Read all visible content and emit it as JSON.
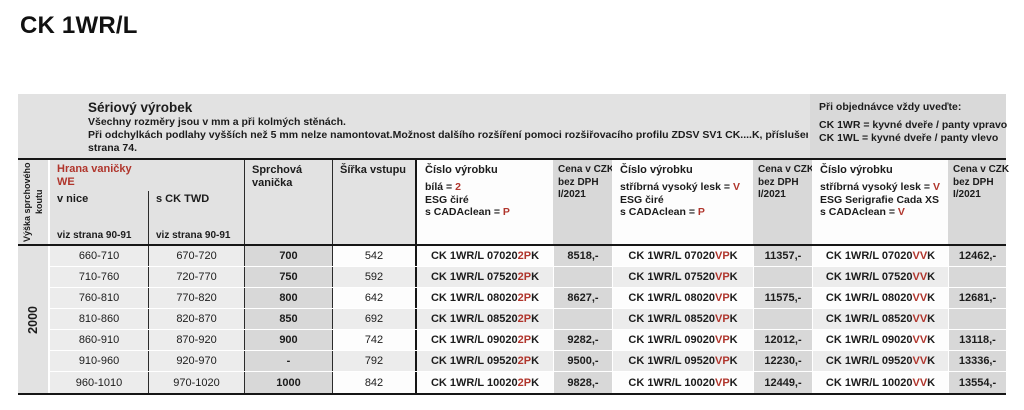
{
  "page_title": "CK 1WR/L",
  "info_band": {
    "heading": "Sériový výrobek",
    "lines": [
      "Všechny rozměry jsou v mm a při kolmých stěnách.",
      "Při odchylkách podlahy vyšších než 5 mm nelze namontovat.Možnost dalšího rozšíření pomoci rozšiřovacího profilu ZDSV SV1 CK....K, příslušenství",
      "strana 74."
    ],
    "order_note": {
      "heading": "Při objednávce vždy uveďte:",
      "lines": [
        "CK 1WR = kyvné dveře / panty vpravo",
        "CK 1WL = kyvné dveře / panty vlevo"
      ]
    }
  },
  "table": {
    "colors": {
      "accent_red": "#b0352c",
      "line_black": "#161616"
    },
    "headers": {
      "height_label": "Výška sprchového koutu",
      "edge_title": "Hrana vaničky",
      "edge_subtitle": "WE",
      "edge_niche": "v nice",
      "edge_twd": "s CK TWD",
      "edge_ref_a": "viz strana 90-91",
      "edge_ref_b": "viz strana 90-91",
      "tray": "Sprchová vanička",
      "entry_width": "Šířka vstupu",
      "product_title1": "Číslo výrobku",
      "product_title2": "Číslo výrobku",
      "product_title3": "Číslo výrobku",
      "price_lines": [
        "Cena v CZK",
        "bez DPH",
        "I/2021"
      ],
      "product1_specs": [
        {
          "text": "bílá = ",
          "code": "2"
        },
        {
          "text": "ESG čiré",
          "code": ""
        },
        {
          "text": "s CADAclean = ",
          "code": "P"
        }
      ],
      "product2_specs": [
        {
          "text": "stříbrná vysoký lesk = ",
          "code": "V"
        },
        {
          "text": "ESG čiré",
          "code": ""
        },
        {
          "text": "s CADAclean = ",
          "code": "P"
        }
      ],
      "product3_specs": [
        {
          "text": "stříbrná vysoký lesk = ",
          "code": "V"
        },
        {
          "text": "ESG Serigrafie Cada XS",
          "code": ""
        },
        {
          "text": "s CADAclean = ",
          "code": "V"
        }
      ]
    },
    "height_value": "2000",
    "rows": [
      {
        "niche": "660-710",
        "twd": "670-720",
        "tray": "700",
        "width": "542",
        "p1": {
          "base": "CK 1WR/L 07020 ",
          "red": "2P",
          "tail": "K"
        },
        "price1": "8518,-",
        "p2": {
          "base": "CK 1WR/L 07020 ",
          "red": "VP",
          "tail": "K"
        },
        "price2": "11357,-",
        "p3": {
          "base": "CK 1WR/L 07020 ",
          "red": "VV",
          "tail": "K"
        },
        "price3": "12462,-"
      },
      {
        "niche": "710-760",
        "twd": "720-770",
        "tray": "750",
        "width": "592",
        "p1": {
          "base": "CK 1WR/L 07520 ",
          "red": "2P",
          "tail": "K"
        },
        "price1": "",
        "p2": {
          "base": "CK 1WR/L 07520 ",
          "red": "VP",
          "tail": "K"
        },
        "price2": "",
        "p3": {
          "base": "CK 1WR/L 07520 ",
          "red": "VV",
          "tail": "K"
        },
        "price3": ""
      },
      {
        "niche": "760-810",
        "twd": "770-820",
        "tray": "800",
        "width": "642",
        "p1": {
          "base": "CK 1WR/L 08020 ",
          "red": "2P",
          "tail": "K"
        },
        "price1": "8627,-",
        "p2": {
          "base": "CK 1WR/L 08020 ",
          "red": "VP",
          "tail": "K"
        },
        "price2": "11575,-",
        "p3": {
          "base": "CK 1WR/L 08020 ",
          "red": "VV",
          "tail": "K"
        },
        "price3": "12681,-"
      },
      {
        "niche": "810-860",
        "twd": "820-870",
        "tray": "850",
        "width": "692",
        "p1": {
          "base": "CK 1WR/L 08520 ",
          "red": "2P",
          "tail": "K"
        },
        "price1": "",
        "p2": {
          "base": "CK 1WR/L 08520 ",
          "red": "VP",
          "tail": "K"
        },
        "price2": "",
        "p3": {
          "base": "CK 1WR/L 08520 ",
          "red": "VV",
          "tail": "K"
        },
        "price3": ""
      },
      {
        "niche": "860-910",
        "twd": "870-920",
        "tray": "900",
        "width": "742",
        "p1": {
          "base": "CK 1WR/L 09020 ",
          "red": "2P",
          "tail": "K"
        },
        "price1": "9282,-",
        "p2": {
          "base": "CK 1WR/L 09020 ",
          "red": "VP",
          "tail": "K"
        },
        "price2": "12012,-",
        "p3": {
          "base": "CK 1WR/L 09020 ",
          "red": "VV",
          "tail": "K"
        },
        "price3": "13118,-"
      },
      {
        "niche": "910-960",
        "twd": "920-970",
        "tray": "-",
        "width": "792",
        "p1": {
          "base": "CK 1WR/L 09520 ",
          "red": "2P",
          "tail": "K"
        },
        "price1": "9500,-",
        "p2": {
          "base": "CK 1WR/L 09520 ",
          "red": "VP",
          "tail": "K"
        },
        "price2": "12230,-",
        "p3": {
          "base": "CK 1WR/L 09520 ",
          "red": "VV",
          "tail": "K"
        },
        "price3": "13336,-"
      },
      {
        "niche": "960-1010",
        "twd": "970-1020",
        "tray": "1000",
        "width": "842",
        "p1": {
          "base": "CK 1WR/L 10020 ",
          "red": "2P",
          "tail": "K"
        },
        "price1": "9828,-",
        "p2": {
          "base": "CK 1WR/L 10020 ",
          "red": "VP",
          "tail": "K"
        },
        "price2": "12449,-",
        "p3": {
          "base": "CK 1WR/L 10020 ",
          "red": "VV",
          "tail": "K"
        },
        "price3": "13554,-"
      }
    ]
  }
}
